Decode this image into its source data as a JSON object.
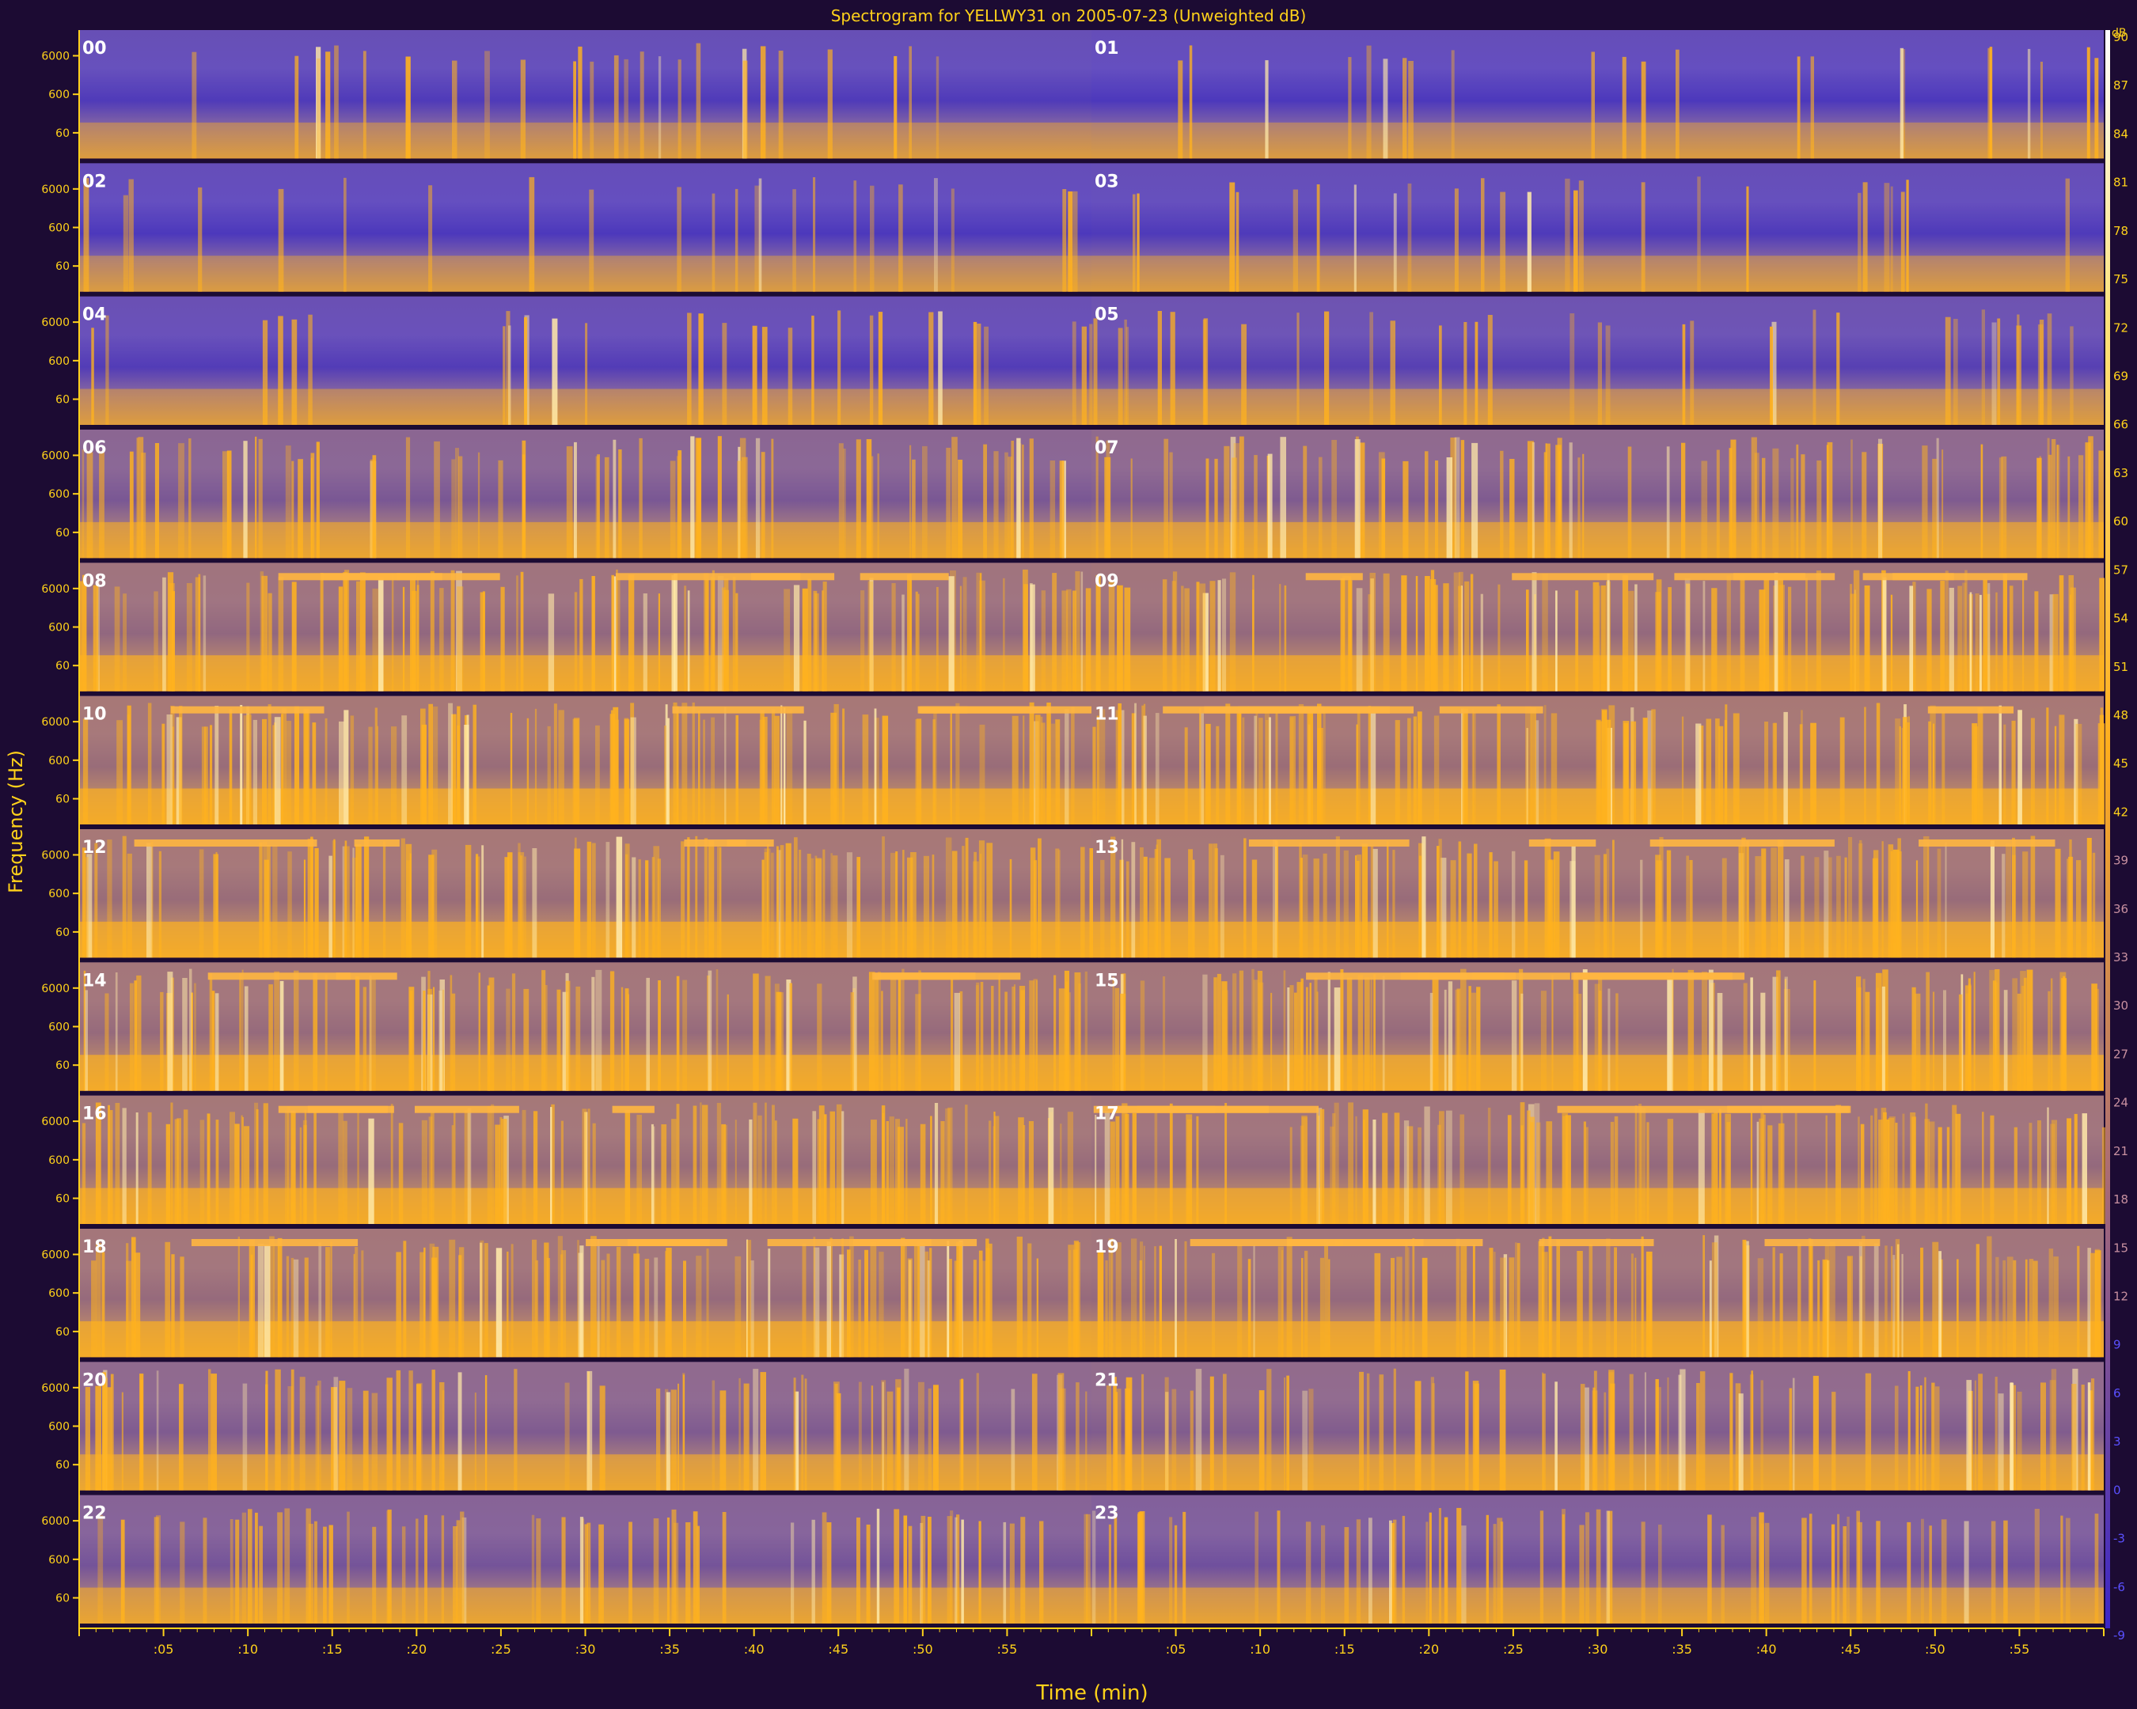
{
  "chart_data": {
    "type": "heatmap",
    "title": "Spectrogram for YELLWY31 on 2005-07-23 (Unweighted dB)",
    "xlabel": "Time (min)",
    "ylabel": "Frequency (Hz)",
    "rows": 12,
    "columns": 2,
    "minutes_per_panel": 60,
    "hour_labels": [
      "00",
      "01",
      "02",
      "03",
      "04",
      "05",
      "06",
      "07",
      "08",
      "09",
      "10",
      "11",
      "12",
      "13",
      "14",
      "15",
      "16",
      "17",
      "18",
      "19",
      "20",
      "21",
      "22",
      "23"
    ],
    "x_tick_labels": [
      ":05",
      ":10",
      ":15",
      ":20",
      ":25",
      ":30",
      ":35",
      ":40",
      ":45",
      ":50",
      ":55"
    ],
    "y_tick_labels": [
      "6000",
      "600",
      "60"
    ],
    "colorbar": {
      "unit": "dB",
      "range": [
        -9,
        90
      ],
      "tick_values": [
        90,
        87,
        84,
        81,
        78,
        75,
        72,
        69,
        66,
        63,
        60,
        57,
        54,
        51,
        48,
        45,
        42,
        39,
        36,
        33,
        30,
        27,
        24,
        21,
        18,
        15,
        12,
        9,
        6,
        3,
        0,
        -3,
        -6,
        -9
      ],
      "low_color": "#3a26c8",
      "high_color": "#ffffff"
    },
    "activity_by_hour": [
      0.15,
      0.12,
      0.12,
      0.14,
      0.18,
      0.22,
      0.55,
      0.6,
      0.78,
      0.8,
      0.85,
      0.86,
      0.85,
      0.84,
      0.82,
      0.82,
      0.83,
      0.8,
      0.82,
      0.8,
      0.6,
      0.62,
      0.5,
      0.45
    ],
    "colors": {
      "background": "#1c0b33",
      "text": "#ffd21a",
      "low": "#4a3cc8",
      "mid": "#c09070",
      "high": "#ffb21e"
    }
  }
}
